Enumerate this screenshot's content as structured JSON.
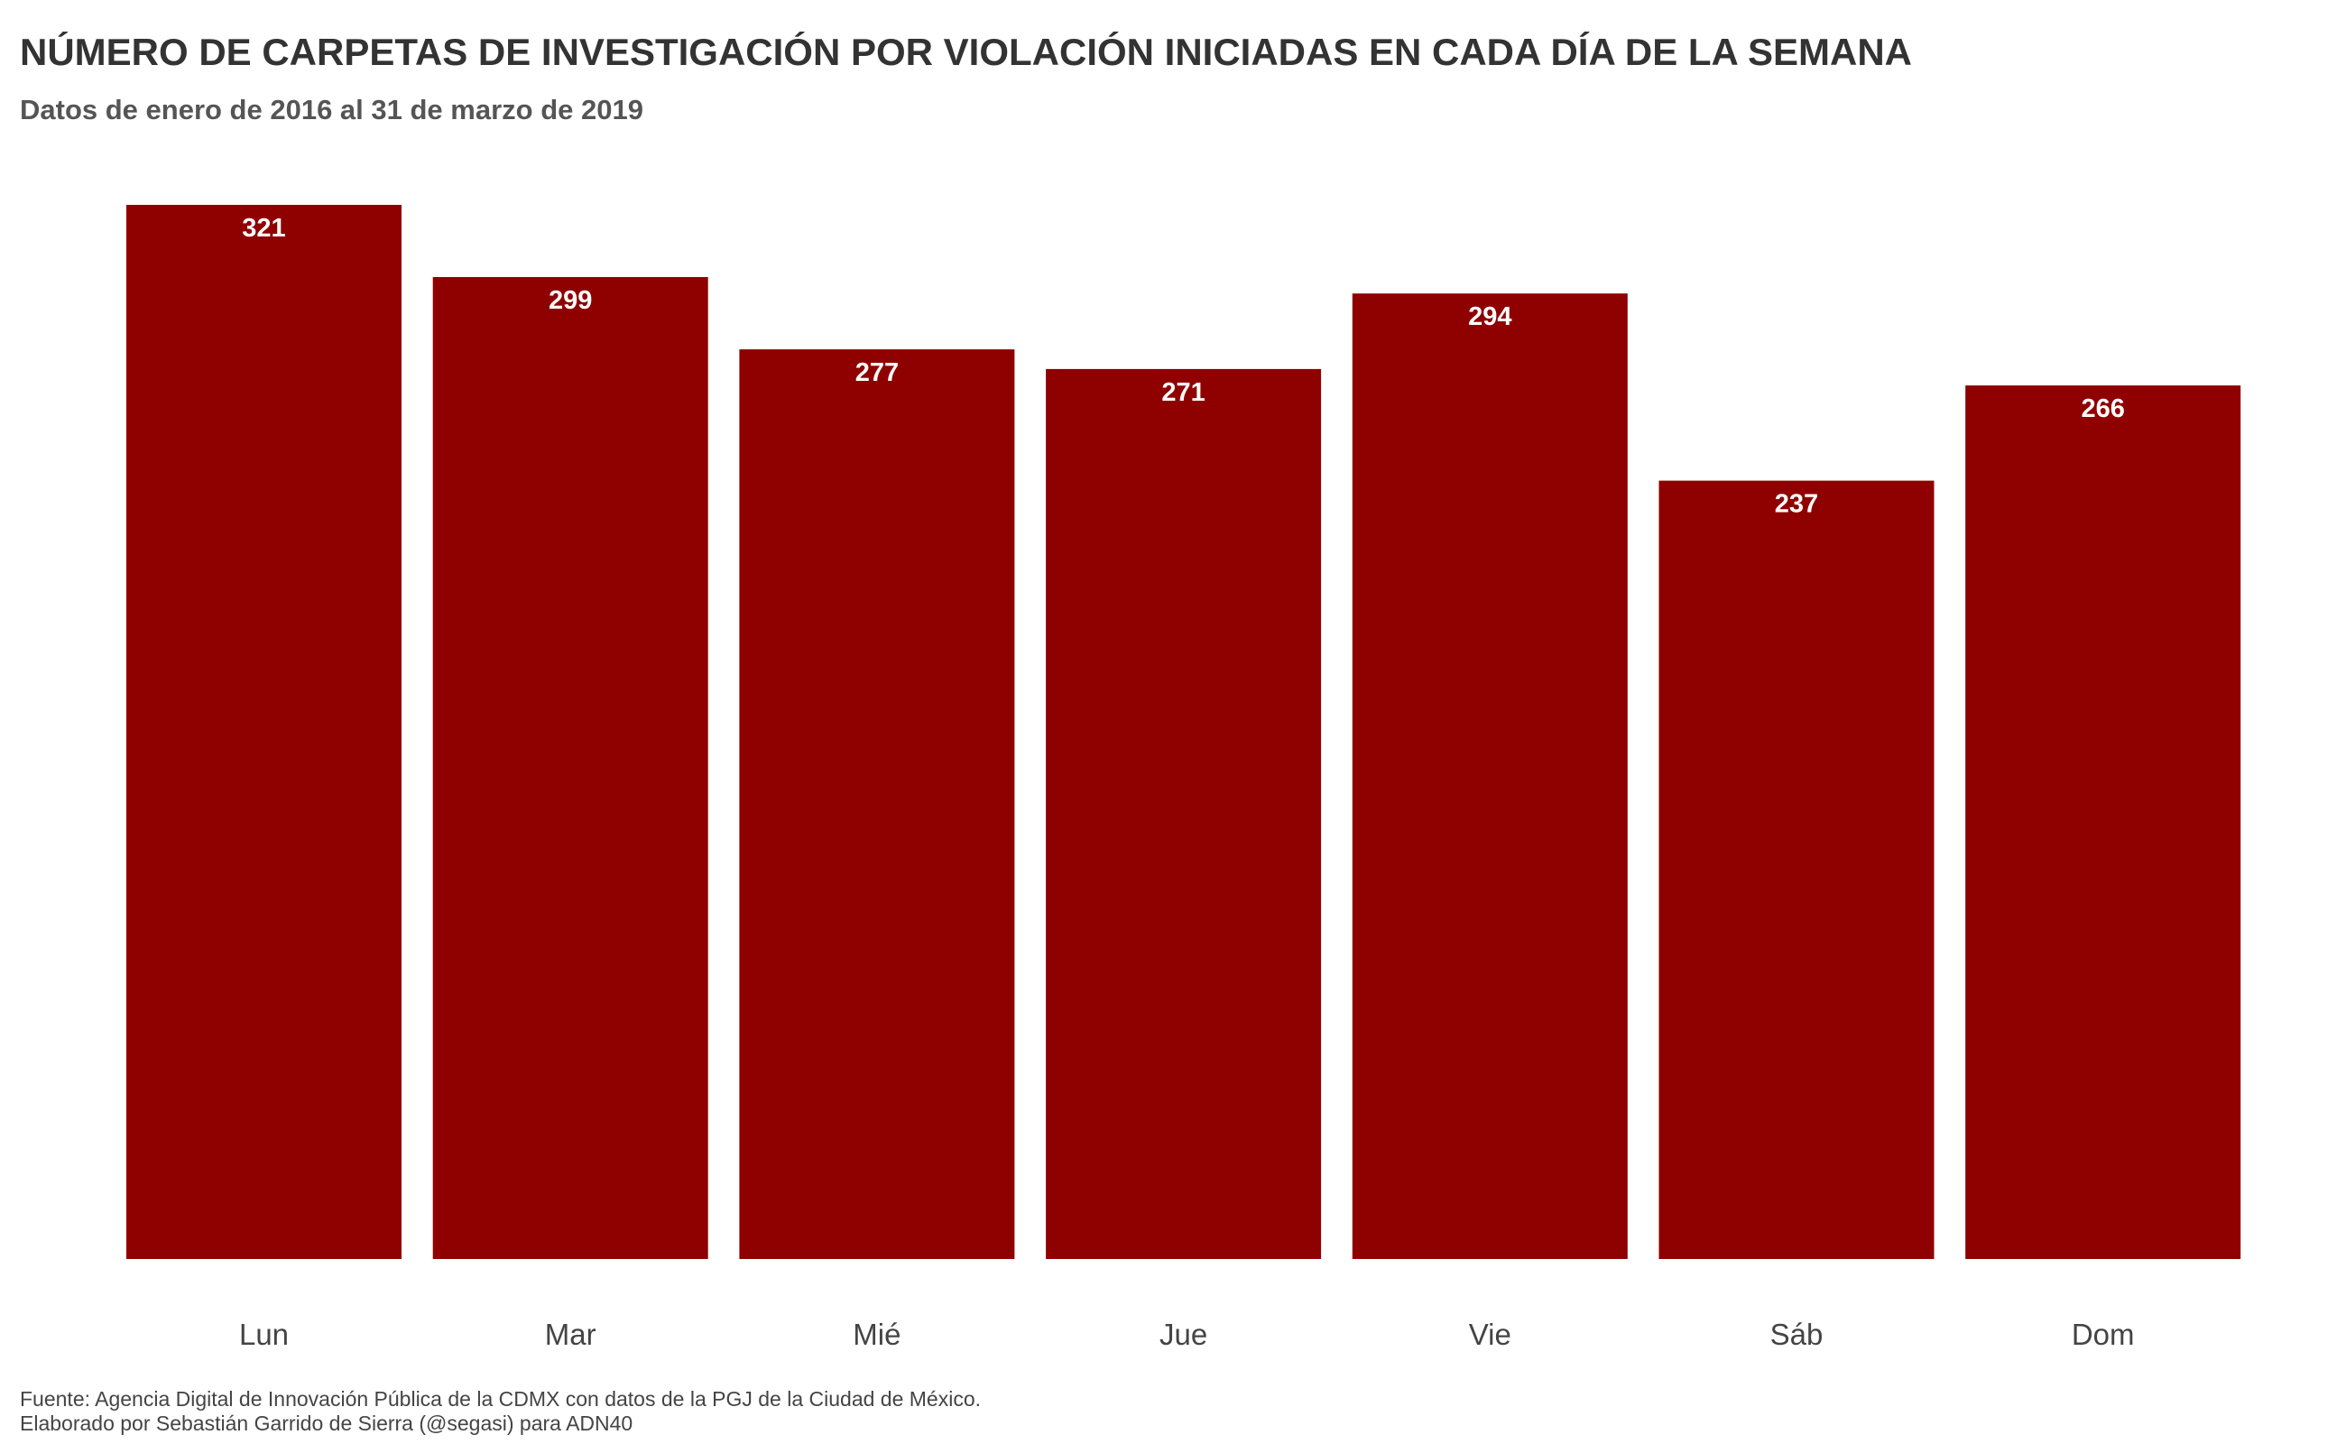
{
  "chart_data": {
    "type": "bar",
    "title": "NÚMERO DE CARPETAS DE INVESTIGACIÓN POR VIOLACIÓN INICIADAS EN CADA DÍA DE LA SEMANA",
    "subtitle": "Datos de enero de 2016 al 31 de marzo de 2019",
    "categories": [
      "Lun",
      "Mar",
      "Mié",
      "Jue",
      "Vie",
      "Sáb",
      "Dom"
    ],
    "values": [
      321,
      299,
      277,
      271,
      294,
      237,
      266
    ],
    "value_labels": [
      "321",
      "299",
      "277",
      "271",
      "294",
      "237",
      "266"
    ],
    "ylim": [
      0,
      321
    ],
    "grid": false,
    "bar_color": "#8f0000",
    "label_color": "#ffffff",
    "caption_lines": [
      "Fuente: Agencia Digital de Innovación Pública de la CDMX con datos de la PGJ de la Ciudad de México.",
      "Elaborado por Sebastián Garrido de Sierra (@segasi) para ADN40"
    ]
  }
}
